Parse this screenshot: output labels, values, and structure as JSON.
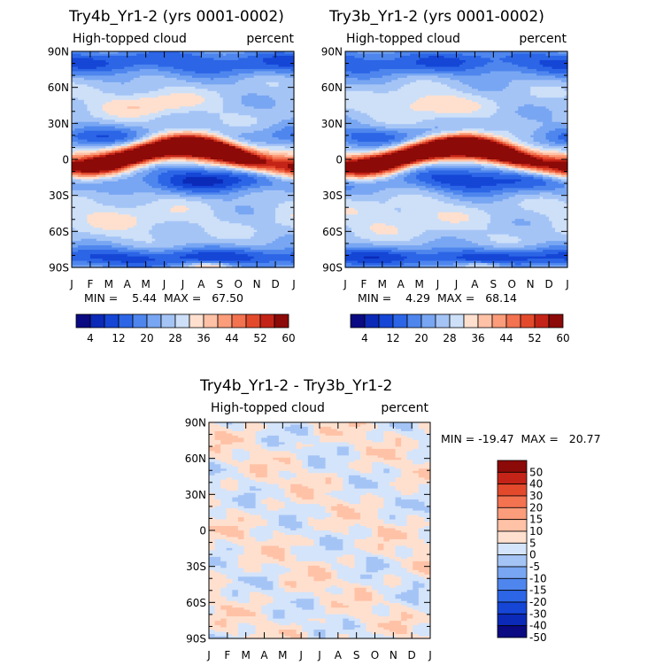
{
  "colors": {
    "seq_palette": [
      "#0a0a82",
      "#0b2ab8",
      "#1546d6",
      "#2c66e6",
      "#4e86ee",
      "#78a6f2",
      "#a5c4f6",
      "#cde0f8",
      "#ffe0cf",
      "#ffc2a6",
      "#fb9c7a",
      "#f37250",
      "#e34a2c",
      "#c42417",
      "#8c0a08"
    ],
    "diff_palette": [
      "#0a0a82",
      "#0b2ab8",
      "#1546d6",
      "#2c66e6",
      "#4e86ee",
      "#78a6f2",
      "#a5c4f6",
      "#d4e4fa",
      "#ffe0cf",
      "#ffc2a6",
      "#fb9c7a",
      "#f37250",
      "#e34a2c",
      "#c42417",
      "#8c0a08"
    ]
  },
  "chart_data": [
    {
      "id": "panel1",
      "type": "heatmap",
      "title": "Try4b_Yr1-2 (yrs 0001-0002)",
      "field_name": "High-topped cloud",
      "units": "percent",
      "x_tick_labels": [
        "J",
        "F",
        "M",
        "A",
        "M",
        "J",
        "J",
        "A",
        "S",
        "O",
        "N",
        "D",
        "J"
      ],
      "y_tick_labels": [
        "90N",
        "60N",
        "30N",
        "0",
        "30S",
        "60S",
        "90S"
      ],
      "y_range": [
        -90,
        90
      ],
      "stats_text": "MIN =    5.44  MAX =   67.50",
      "min": 5.44,
      "max": 67.5,
      "colorbar_labels": [
        "4",
        "12",
        "20",
        "28",
        "36",
        "44",
        "52",
        "60"
      ],
      "levels": [
        4,
        8,
        12,
        16,
        20,
        24,
        28,
        32,
        36,
        40,
        44,
        48,
        52,
        56,
        60
      ],
      "field_variant": 0
    },
    {
      "id": "panel2",
      "type": "heatmap",
      "title": "Try3b_Yr1-2 (yrs 0001-0002)",
      "field_name": "High-topped cloud",
      "units": "percent",
      "x_tick_labels": [
        "J",
        "F",
        "M",
        "A",
        "M",
        "J",
        "J",
        "A",
        "S",
        "O",
        "N",
        "D",
        "J"
      ],
      "y_tick_labels": [
        "90N",
        "60N",
        "30N",
        "0",
        "30S",
        "60S",
        "90S"
      ],
      "y_range": [
        -90,
        90
      ],
      "stats_text": "MIN =    4.29  MAX =   68.14",
      "min": 4.29,
      "max": 68.14,
      "colorbar_labels": [
        "4",
        "12",
        "20",
        "28",
        "36",
        "44",
        "52",
        "60"
      ],
      "levels": [
        4,
        8,
        12,
        16,
        20,
        24,
        28,
        32,
        36,
        40,
        44,
        48,
        52,
        56,
        60
      ],
      "field_variant": 1
    },
    {
      "id": "panel3",
      "type": "heatmap",
      "title": "Try4b_Yr1-2 - Try3b_Yr1-2",
      "field_name": "High-topped cloud",
      "units": "percent",
      "x_tick_labels": [
        "J",
        "F",
        "M",
        "A",
        "M",
        "J",
        "J",
        "A",
        "S",
        "O",
        "N",
        "D",
        "J"
      ],
      "y_tick_labels": [
        "90N",
        "60N",
        "30N",
        "0",
        "30S",
        "60S",
        "90S"
      ],
      "y_range": [
        -90,
        90
      ],
      "stats_text": "MIN = -19.47  MAX =   20.77",
      "min": -19.47,
      "max": 20.77,
      "colorbar_labels": [
        "50",
        "40",
        "30",
        "20",
        "15",
        "10",
        "5",
        "0",
        "-5",
        "-10",
        "-15",
        "-20",
        "-30",
        "-40",
        "-50"
      ],
      "levels": [
        -50,
        -40,
        -30,
        -20,
        -15,
        -10,
        -5,
        0,
        5,
        10,
        15,
        20,
        30,
        40,
        50
      ],
      "field_variant": 2
    }
  ]
}
